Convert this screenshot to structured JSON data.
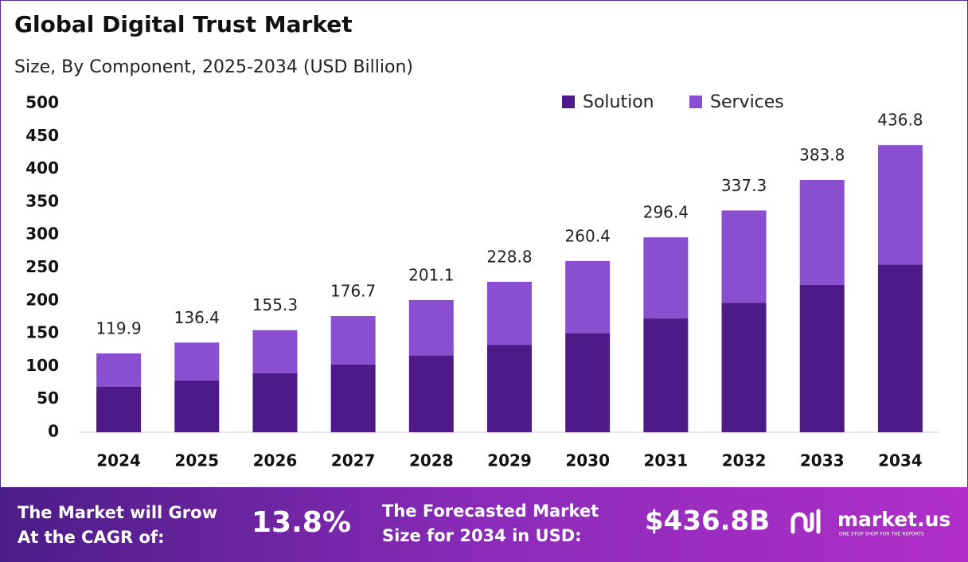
{
  "chart_data": {
    "type": "stacked-bar",
    "title": "Global Digital Trust Market",
    "subtitle": "Size, By Component, 2025-2034 (USD Billion)",
    "categories": [
      "2024",
      "2025",
      "2026",
      "2027",
      "2028",
      "2029",
      "2030",
      "2031",
      "2032",
      "2033",
      "2034"
    ],
    "series": [
      {
        "name": "Solution",
        "color": "#4e1a87",
        "values": [
          69,
          79,
          90,
          103,
          117,
          133,
          151,
          173,
          197,
          224,
          255
        ]
      },
      {
        "name": "Services",
        "color": "#8a4fd1",
        "values": [
          50.9,
          57.4,
          65.3,
          73.7,
          84.1,
          95.8,
          109.4,
          123.4,
          140.3,
          159.8,
          181.8
        ]
      }
    ],
    "totals": [
      119.9,
      136.4,
      155.3,
      176.7,
      201.1,
      228.8,
      260.4,
      296.4,
      337.3,
      383.8,
      436.8
    ],
    "ylim": [
      0,
      500
    ],
    "yticks": [
      0,
      50,
      100,
      150,
      200,
      250,
      300,
      350,
      400,
      450,
      500
    ],
    "grid": false,
    "legend": "top-right"
  },
  "banner": {
    "cagr_text": [
      "The Market will Grow",
      "At the CAGR of:"
    ],
    "cagr": "13.8%",
    "forecast_text": [
      "The Forecasted Market",
      "Size for 2034 in USD:"
    ],
    "forecast": "$436.8B",
    "brand": "market.us",
    "tagline": "ONE STOP SHOP FOR THE REPORTS"
  }
}
